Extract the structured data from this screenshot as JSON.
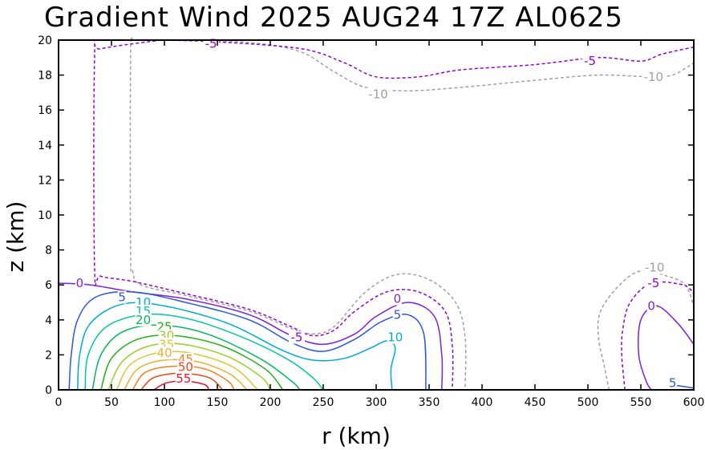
{
  "chart_data": {
    "type": "contour",
    "title": "Gradient Wind 2025 AUG24 17Z  AL0625",
    "xlabel": "r (km)",
    "ylabel": "z (km)",
    "xlim": [
      0,
      600
    ],
    "ylim": [
      0,
      20
    ],
    "x_ticks": [
      "0",
      "50",
      "100",
      "150",
      "200",
      "250",
      "300",
      "350",
      "400",
      "450",
      "500",
      "550",
      "600"
    ],
    "y_ticks": [
      "0",
      "2",
      "4",
      "6",
      "8",
      "10",
      "12",
      "14",
      "16",
      "18",
      "20"
    ],
    "grid": false,
    "legend": "none",
    "levels": [
      {
        "value": -10,
        "color": "#a0a0a0",
        "dashed": true,
        "paths": [
          [
            [
              70,
              20
            ],
            [
              68,
              19
            ],
            [
              68,
              8
            ],
            [
              70,
              6.8
            ],
            [
              78,
              6
            ],
            [
              120,
              5.4
            ],
            [
              180,
              4.5
            ],
            [
              220,
              3.5
            ],
            [
              240,
              3.2
            ],
            [
              260,
              3.6
            ],
            [
              290,
              5.6
            ],
            [
              320,
              6.6
            ],
            [
              350,
              6.3
            ],
            [
              375,
              5
            ],
            [
              384,
              3
            ],
            [
              384,
              0
            ]
          ],
          [
            [
              520,
              0
            ],
            [
              515,
              1.5
            ],
            [
              510,
              3
            ],
            [
              512,
              4.5
            ],
            [
              530,
              6
            ],
            [
              550,
              6.8
            ],
            [
              575,
              6.5
            ],
            [
              592,
              6
            ],
            [
              600,
              4.8
            ]
          ],
          [
            [
              140,
              20
            ],
            [
              190,
              19.8
            ],
            [
              230,
              19.3
            ],
            [
              260,
              18.2
            ],
            [
              290,
              17.3
            ],
            [
              330,
              17.1
            ],
            [
              380,
              17.3
            ],
            [
              450,
              17.7
            ],
            [
              510,
              18
            ],
            [
              560,
              17.9
            ],
            [
              580,
              18
            ],
            [
              595,
              18.5
            ],
            [
              600,
              18.7
            ]
          ]
        ]
      },
      {
        "value": -5,
        "color": "#9400d3",
        "dashed": true,
        "paths": [
          [
            [
              97,
              20
            ],
            [
              40,
              19.5
            ],
            [
              34,
              19
            ],
            [
              34,
              7
            ],
            [
              40,
              6.5
            ],
            [
              70,
              6.2
            ],
            [
              120,
              5.5
            ],
            [
              180,
              4.6
            ],
            [
              220,
              3.6
            ],
            [
              240,
              3.1
            ],
            [
              260,
              3.4
            ],
            [
              280,
              4.5
            ],
            [
              310,
              5.6
            ],
            [
              340,
              5.6
            ],
            [
              365,
              4.5
            ],
            [
              372,
              2.5
            ],
            [
              372,
              0
            ]
          ],
          [
            [
              535,
              0
            ],
            [
              532,
              2
            ],
            [
              533,
              3.5
            ],
            [
              540,
              5
            ],
            [
              560,
              6.1
            ],
            [
              590,
              6
            ],
            [
              600,
              5.5
            ]
          ],
          [
            [
              97,
              20
            ],
            [
              150,
              19.9
            ],
            [
              230,
              19.5
            ],
            [
              270,
              18.7
            ],
            [
              300,
              17.9
            ],
            [
              340,
              17.9
            ],
            [
              380,
              18.3
            ],
            [
              450,
              18.6
            ],
            [
              510,
              19
            ],
            [
              550,
              18.8
            ],
            [
              570,
              19.2
            ],
            [
              600,
              19.6
            ]
          ]
        ]
      },
      {
        "value": 0,
        "color": "#7a22d6",
        "dashed": false,
        "paths": [
          [
            [
              0,
              6.1
            ],
            [
              30,
              6
            ],
            [
              70,
              5.6
            ],
            [
              120,
              5.2
            ],
            [
              180,
              4.3
            ],
            [
              220,
              3.1
            ],
            [
              250,
              2.6
            ],
            [
              280,
              3.2
            ],
            [
              300,
              4.2
            ],
            [
              330,
              5
            ],
            [
              355,
              4.2
            ],
            [
              362,
              2
            ],
            [
              362,
              0
            ]
          ],
          [
            [
              600,
              2.6
            ],
            [
              585,
              3.8
            ],
            [
              565,
              4.8
            ],
            [
              550,
              4
            ],
            [
              548,
              2
            ],
            [
              555,
              0.5
            ],
            [
              560,
              0
            ]
          ]
        ]
      },
      {
        "value": 5,
        "color": "#2a55e0",
        "dashed": false,
        "paths": [
          [
            [
              10,
              0
            ],
            [
              12,
              2
            ],
            [
              18,
              4
            ],
            [
              35,
              5.3
            ],
            [
              70,
              5.6
            ],
            [
              120,
              5
            ],
            [
              180,
              4
            ],
            [
              220,
              2.7
            ],
            [
              250,
              2.2
            ],
            [
              280,
              2.9
            ],
            [
              305,
              3.9
            ],
            [
              330,
              4.3
            ],
            [
              345,
              3.2
            ],
            [
              347,
              0
            ]
          ],
          [
            [
              578,
              0.3
            ],
            [
              595,
              0.15
            ],
            [
              600,
              0.1
            ]
          ]
        ]
      },
      {
        "value": 10,
        "color": "#00a8d8",
        "dashed": false,
        "paths": [
          [
            [
              18,
              0
            ],
            [
              20,
              2
            ],
            [
              30,
              3.8
            ],
            [
              60,
              4.9
            ],
            [
              100,
              4.8
            ],
            [
              160,
              3.8
            ],
            [
              210,
              2.3
            ],
            [
              240,
              1.7
            ],
            [
              270,
              1.8
            ],
            [
              295,
              2.4
            ],
            [
              310,
              2.8
            ],
            [
              318,
              2.4
            ],
            [
              314,
              1.2
            ],
            [
              315,
              0
            ]
          ]
        ]
      },
      {
        "value": 15,
        "color": "#00c8a0",
        "dashed": false,
        "paths": [
          [
            [
              25,
              0
            ],
            [
              28,
              2
            ],
            [
              45,
              3.6
            ],
            [
              80,
              4.3
            ],
            [
              120,
              4.1
            ],
            [
              170,
              3.1
            ],
            [
              215,
              1.8
            ],
            [
              240,
              0.7
            ],
            [
              250,
              0
            ]
          ]
        ]
      },
      {
        "value": 20,
        "color": "#00b85a",
        "dashed": false,
        "paths": [
          [
            [
              32,
              0
            ],
            [
              40,
              2
            ],
            [
              60,
              3.3
            ],
            [
              95,
              3.7
            ],
            [
              140,
              3.2
            ],
            [
              190,
              1.8
            ],
            [
              220,
              0.5
            ],
            [
              228,
              0
            ]
          ]
        ]
      },
      {
        "value": 25,
        "color": "#22b014",
        "dashed": false,
        "paths": [
          [
            [
              40,
              0
            ],
            [
              50,
              1.8
            ],
            [
              75,
              2.9
            ],
            [
              110,
              3.1
            ],
            [
              155,
              2.5
            ],
            [
              195,
              1.2
            ],
            [
              212,
              0
            ]
          ]
        ]
      },
      {
        "value": 30,
        "color": "#9acd2a",
        "dashed": false,
        "paths": [
          [
            [
              47,
              0
            ],
            [
              60,
              1.6
            ],
            [
              85,
              2.5
            ],
            [
              118,
              2.6
            ],
            [
              160,
              1.9
            ],
            [
              192,
              0.7
            ],
            [
              200,
              0
            ]
          ]
        ]
      },
      {
        "value": 35,
        "color": "#d8c832",
        "dashed": false,
        "paths": [
          [
            [
              55,
              0
            ],
            [
              67,
              1.4
            ],
            [
              92,
              2.1
            ],
            [
              125,
              2.1
            ],
            [
              165,
              1.3
            ],
            [
              188,
              0
            ]
          ]
        ]
      },
      {
        "value": 40,
        "color": "#e8b030",
        "dashed": false,
        "paths": [
          [
            [
              62,
              0
            ],
            [
              75,
              1.2
            ],
            [
              100,
              1.7
            ],
            [
              132,
              1.6
            ],
            [
              162,
              0.9
            ],
            [
              178,
              0
            ]
          ]
        ]
      },
      {
        "value": 45,
        "color": "#f08020",
        "dashed": false,
        "paths": [
          [
            [
              70,
              0
            ],
            [
              82,
              1
            ],
            [
              108,
              1.35
            ],
            [
              138,
              1.2
            ],
            [
              160,
              0.5
            ],
            [
              166,
              0
            ]
          ]
        ]
      },
      {
        "value": 50,
        "color": "#f04418",
        "dashed": false,
        "paths": [
          [
            [
              78,
              0
            ],
            [
              90,
              0.7
            ],
            [
              115,
              0.95
            ],
            [
              142,
              0.7
            ],
            [
              155,
              0
            ]
          ]
        ]
      },
      {
        "value": 55,
        "color": "#e8102a",
        "dashed": false,
        "paths": [
          [
            [
              90,
              0
            ],
            [
              102,
              0.4
            ],
            [
              120,
              0.5
            ],
            [
              138,
              0.3
            ],
            [
              142,
              0
            ]
          ]
        ]
      }
    ],
    "contour_labels": [
      {
        "text": "-5",
        "x": 144,
        "y": 19.8,
        "color": "#9400d3"
      },
      {
        "text": "-5",
        "x": 502,
        "y": 18.8,
        "color": "#9400d3"
      },
      {
        "text": "-10",
        "x": 302,
        "y": 16.9,
        "color": "#a0a0a0"
      },
      {
        "text": "-10",
        "x": 562,
        "y": 17.9,
        "color": "#a0a0a0"
      },
      {
        "text": "0",
        "x": 20,
        "y": 6.1,
        "color": "#7a22d6"
      },
      {
        "text": "5",
        "x": 60,
        "y": 5.3,
        "color": "#2a55e0"
      },
      {
        "text": "10",
        "x": 80,
        "y": 5.0,
        "color": "#00a8d8"
      },
      {
        "text": "15",
        "x": 80,
        "y": 4.5,
        "color": "#00c8a0"
      },
      {
        "text": "20",
        "x": 80,
        "y": 4.0,
        "color": "#00b85a"
      },
      {
        "text": "25",
        "x": 100,
        "y": 3.6,
        "color": "#22b014"
      },
      {
        "text": "30",
        "x": 102,
        "y": 3.1,
        "color": "#9acd2a"
      },
      {
        "text": "35",
        "x": 102,
        "y": 2.6,
        "color": "#d8c832"
      },
      {
        "text": "40",
        "x": 100,
        "y": 2.1,
        "color": "#e8b030"
      },
      {
        "text": "45",
        "x": 120,
        "y": 1.75,
        "color": "#f08020"
      },
      {
        "text": "50",
        "x": 120,
        "y": 1.3,
        "color": "#f04418"
      },
      {
        "text": "55",
        "x": 118,
        "y": 0.65,
        "color": "#e8102a"
      },
      {
        "text": "-5",
        "x": 225,
        "y": 3.0,
        "color": "#9400d3"
      },
      {
        "text": "0",
        "x": 320,
        "y": 5.2,
        "color": "#7a22d6"
      },
      {
        "text": "5",
        "x": 320,
        "y": 4.3,
        "color": "#2a55e0"
      },
      {
        "text": "10",
        "x": 318,
        "y": 3.0,
        "color": "#00a8d8"
      },
      {
        "text": "-10",
        "x": 563,
        "y": 7.0,
        "color": "#a0a0a0"
      },
      {
        "text": "-5",
        "x": 562,
        "y": 6.1,
        "color": "#9400d3"
      },
      {
        "text": "0",
        "x": 560,
        "y": 4.8,
        "color": "#7a22d6"
      },
      {
        "text": "5",
        "x": 580,
        "y": 0.4,
        "color": "#2a55e0"
      }
    ]
  }
}
